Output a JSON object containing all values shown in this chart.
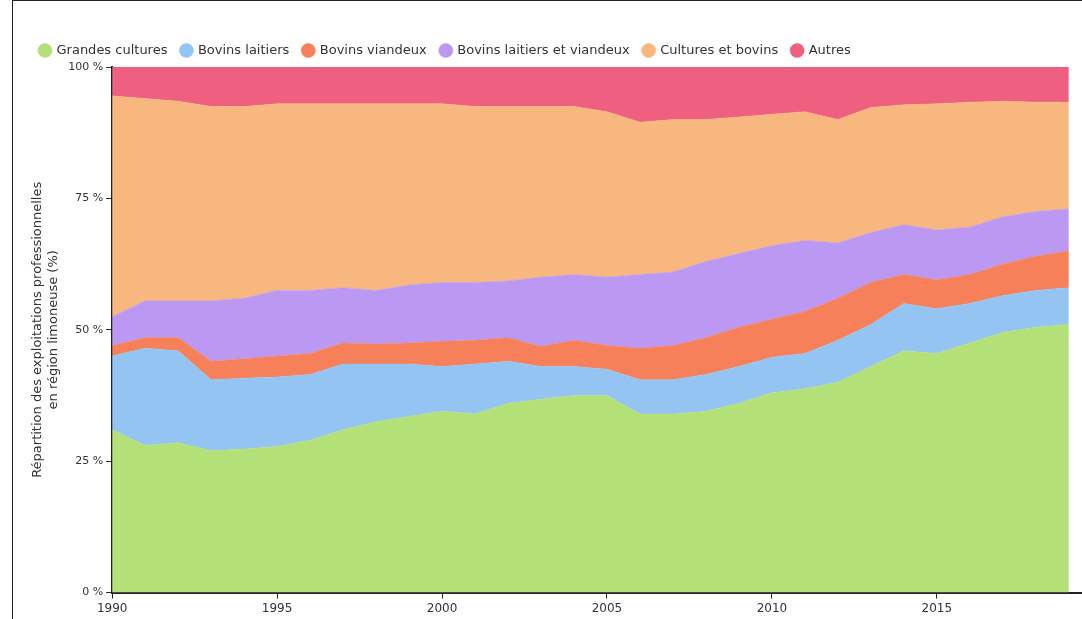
{
  "chart_data": {
    "type": "area",
    "stacked": true,
    "ylabel": "Répartition des exploitations professionnelles\nen région limoneuse (%)",
    "x": [
      1990,
      1991,
      1992,
      1993,
      1994,
      1995,
      1996,
      1997,
      1998,
      1999,
      2000,
      2001,
      2002,
      2003,
      2004,
      2005,
      2006,
      2007,
      2008,
      2009,
      2010,
      2011,
      2012,
      2013,
      2014,
      2015,
      2016,
      2017,
      2018,
      2019
    ],
    "series": [
      {
        "name": "Grandes cultures",
        "color": "#b3e077",
        "values": [
          31,
          28,
          28.5,
          27,
          27.3,
          27.8,
          29,
          31,
          32.5,
          33.5,
          34.5,
          34,
          36,
          36.8,
          37.5,
          37.5,
          34,
          34,
          34.5,
          36,
          38,
          38.8,
          40,
          43,
          46,
          45.5,
          47.5,
          49.5,
          50.5,
          51
        ]
      },
      {
        "name": "Bovins laitiers",
        "color": "#94c4f2",
        "values": [
          14,
          18.5,
          17.5,
          13.5,
          13.5,
          13.2,
          12.5,
          12.5,
          11,
          10,
          8.5,
          9.5,
          8,
          6.2,
          5.5,
          5,
          6.5,
          6.5,
          7,
          7,
          6.8,
          6.7,
          8,
          8,
          9,
          8.5,
          7.5,
          7,
          7,
          7
        ]
      },
      {
        "name": "Bovins viandeux",
        "color": "#f5805a",
        "values": [
          2,
          2,
          2.5,
          3.5,
          3.7,
          4,
          4,
          4,
          3.8,
          4,
          4.8,
          4.5,
          4.5,
          3.8,
          5,
          4.5,
          6,
          6.5,
          7,
          7.5,
          7.2,
          8,
          8,
          8,
          5.5,
          5.5,
          5.5,
          6,
          6.5,
          7
        ]
      },
      {
        "name": "Bovins laitiers et viandeux",
        "color": "#bb98f2",
        "values": [
          5.5,
          7,
          7,
          11.5,
          11.5,
          12.5,
          12,
          10.5,
          10.2,
          11,
          11.2,
          11,
          10.8,
          13.2,
          12.5,
          13,
          14,
          14,
          14.5,
          14,
          14,
          13.5,
          10.5,
          9.5,
          9.5,
          9.5,
          9,
          9,
          8.5,
          8
        ]
      },
      {
        "name": "Cultures et bovins",
        "color": "#f7b77e",
        "values": [
          42,
          38.5,
          38,
          37,
          36.5,
          35.5,
          35.5,
          35,
          35.5,
          34.5,
          34,
          33.5,
          33.2,
          32.5,
          32,
          31.5,
          29,
          29,
          27,
          26,
          25,
          24.5,
          23.5,
          23.8,
          22.8,
          24,
          23.8,
          22,
          20.8,
          20.3
        ]
      },
      {
        "name": "Autres",
        "color": "#ef5f80",
        "values": [
          5.5,
          6,
          6.5,
          7.5,
          7.5,
          7,
          7,
          7,
          7,
          7,
          7,
          7.5,
          7.5,
          7.5,
          7.5,
          8.5,
          10.5,
          10,
          10,
          9.5,
          9,
          8.5,
          10,
          7.7,
          7.2,
          7,
          6.7,
          6.5,
          6.7,
          6.7
        ]
      }
    ],
    "xlim": [
      1990,
      2019.4
    ],
    "xticks": [
      1990,
      1995,
      2000,
      2005,
      2010,
      2015
    ],
    "ylim": [
      0,
      100
    ],
    "yticks": [
      {
        "value": 0,
        "label": "0 %"
      },
      {
        "value": 25,
        "label": "25 %"
      },
      {
        "value": 50,
        "label": "50 %"
      },
      {
        "value": 75,
        "label": "75 %"
      },
      {
        "value": 100,
        "label": "100 %"
      }
    ],
    "grid": false,
    "legend": "top left",
    "marker": "none"
  }
}
